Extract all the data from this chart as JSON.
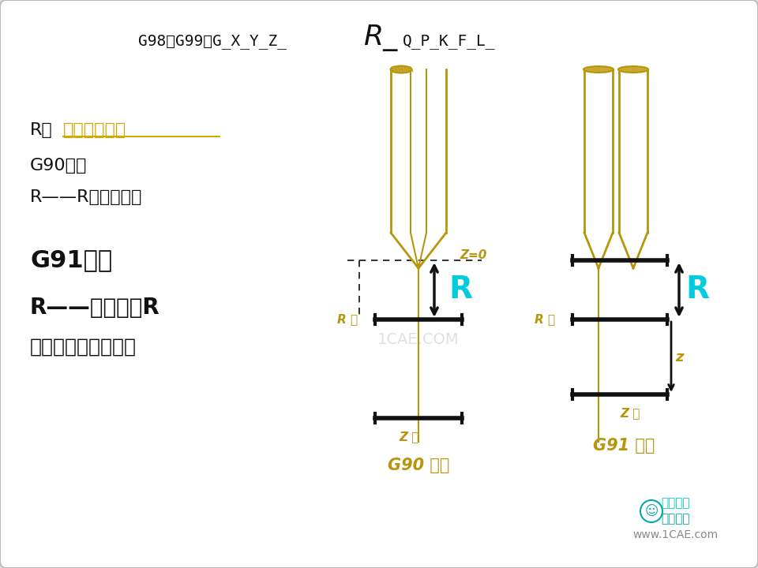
{
  "bg_color": "#e8e8e8",
  "gold": "#b8960c",
  "black": "#111111",
  "cyan": "#00ccdd",
  "white": "#ffffff",
  "yellow_text": "#d4a800",
  "gray_text": "#555555",
  "hatch_color": "#c8a830",
  "title_normal": "G98（G99）G_X_Y_Z_",
  "title_R": "R_",
  "title_rest": "Q_P_K_F_L_",
  "left_line1a": "R为",
  "left_line1b": "安全平面位置",
  "left_line2": "G90时，",
  "left_line3": "R——R面的坐标値",
  "left_line4": "G91时，",
  "left_line5": "R——初始点到R",
  "left_line6": "面的距离（常为负）",
  "g90_label": "G90 编程",
  "g91_label": "G91 编程",
  "r_point": "R 点",
  "z_point": "Z 点",
  "z0_label": "Z=0",
  "z_label": "z",
  "watermark1": "1CAE.COM",
  "watermark2": "机械学霖",
  "watermark3": "仿真在线",
  "watermark4": "www.1CAE.com"
}
